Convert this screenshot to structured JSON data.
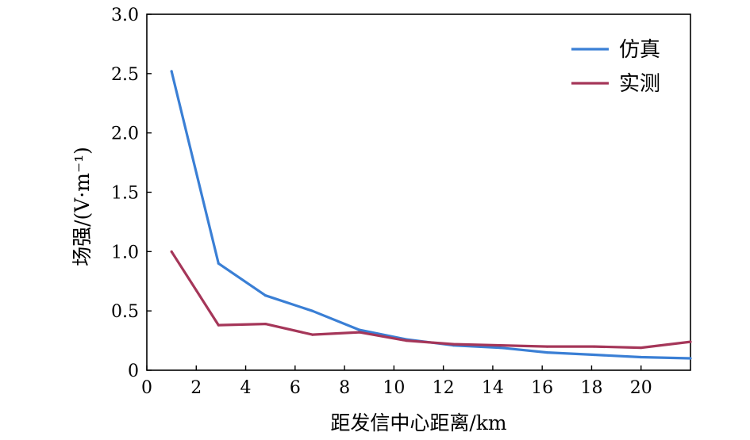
{
  "chart_data": {
    "type": "line",
    "xlabel": "距发信中心距离/km",
    "ylabel": "场强/(V·m⁻¹)",
    "xlim": [
      0,
      22
    ],
    "ylim": [
      0,
      3.0
    ],
    "x_ticks": [
      0,
      2,
      4,
      6,
      8,
      10,
      12,
      14,
      16,
      18,
      20
    ],
    "y_ticks": [
      0,
      0.5,
      1.0,
      1.5,
      2.0,
      2.5,
      3.0
    ],
    "x_tick_labels": [
      "0",
      "2",
      "4",
      "6",
      "8",
      "10",
      "12",
      "14",
      "16",
      "18",
      "20"
    ],
    "y_tick_labels": [
      "0",
      "0.5",
      "1.0",
      "1.5",
      "2.0",
      "2.5",
      "3.0"
    ],
    "grid": false,
    "legend_position": "top-right",
    "series": [
      {
        "name": "仿真",
        "color": "#3a7fd5",
        "x": [
          1,
          2.9,
          4.8,
          6.7,
          8.6,
          10.5,
          12.4,
          14.3,
          16.2,
          18.1,
          20,
          22
        ],
        "y": [
          2.52,
          0.9,
          0.63,
          0.5,
          0.34,
          0.26,
          0.21,
          0.19,
          0.15,
          0.13,
          0.11,
          0.1
        ]
      },
      {
        "name": "实测",
        "color": "#a53659",
        "x": [
          1,
          2.9,
          4.8,
          6.7,
          8.6,
          10.5,
          12.4,
          14.3,
          16.2,
          18.1,
          20,
          22
        ],
        "y": [
          1.0,
          0.38,
          0.39,
          0.3,
          0.32,
          0.25,
          0.22,
          0.21,
          0.2,
          0.2,
          0.19,
          0.24
        ]
      }
    ]
  }
}
